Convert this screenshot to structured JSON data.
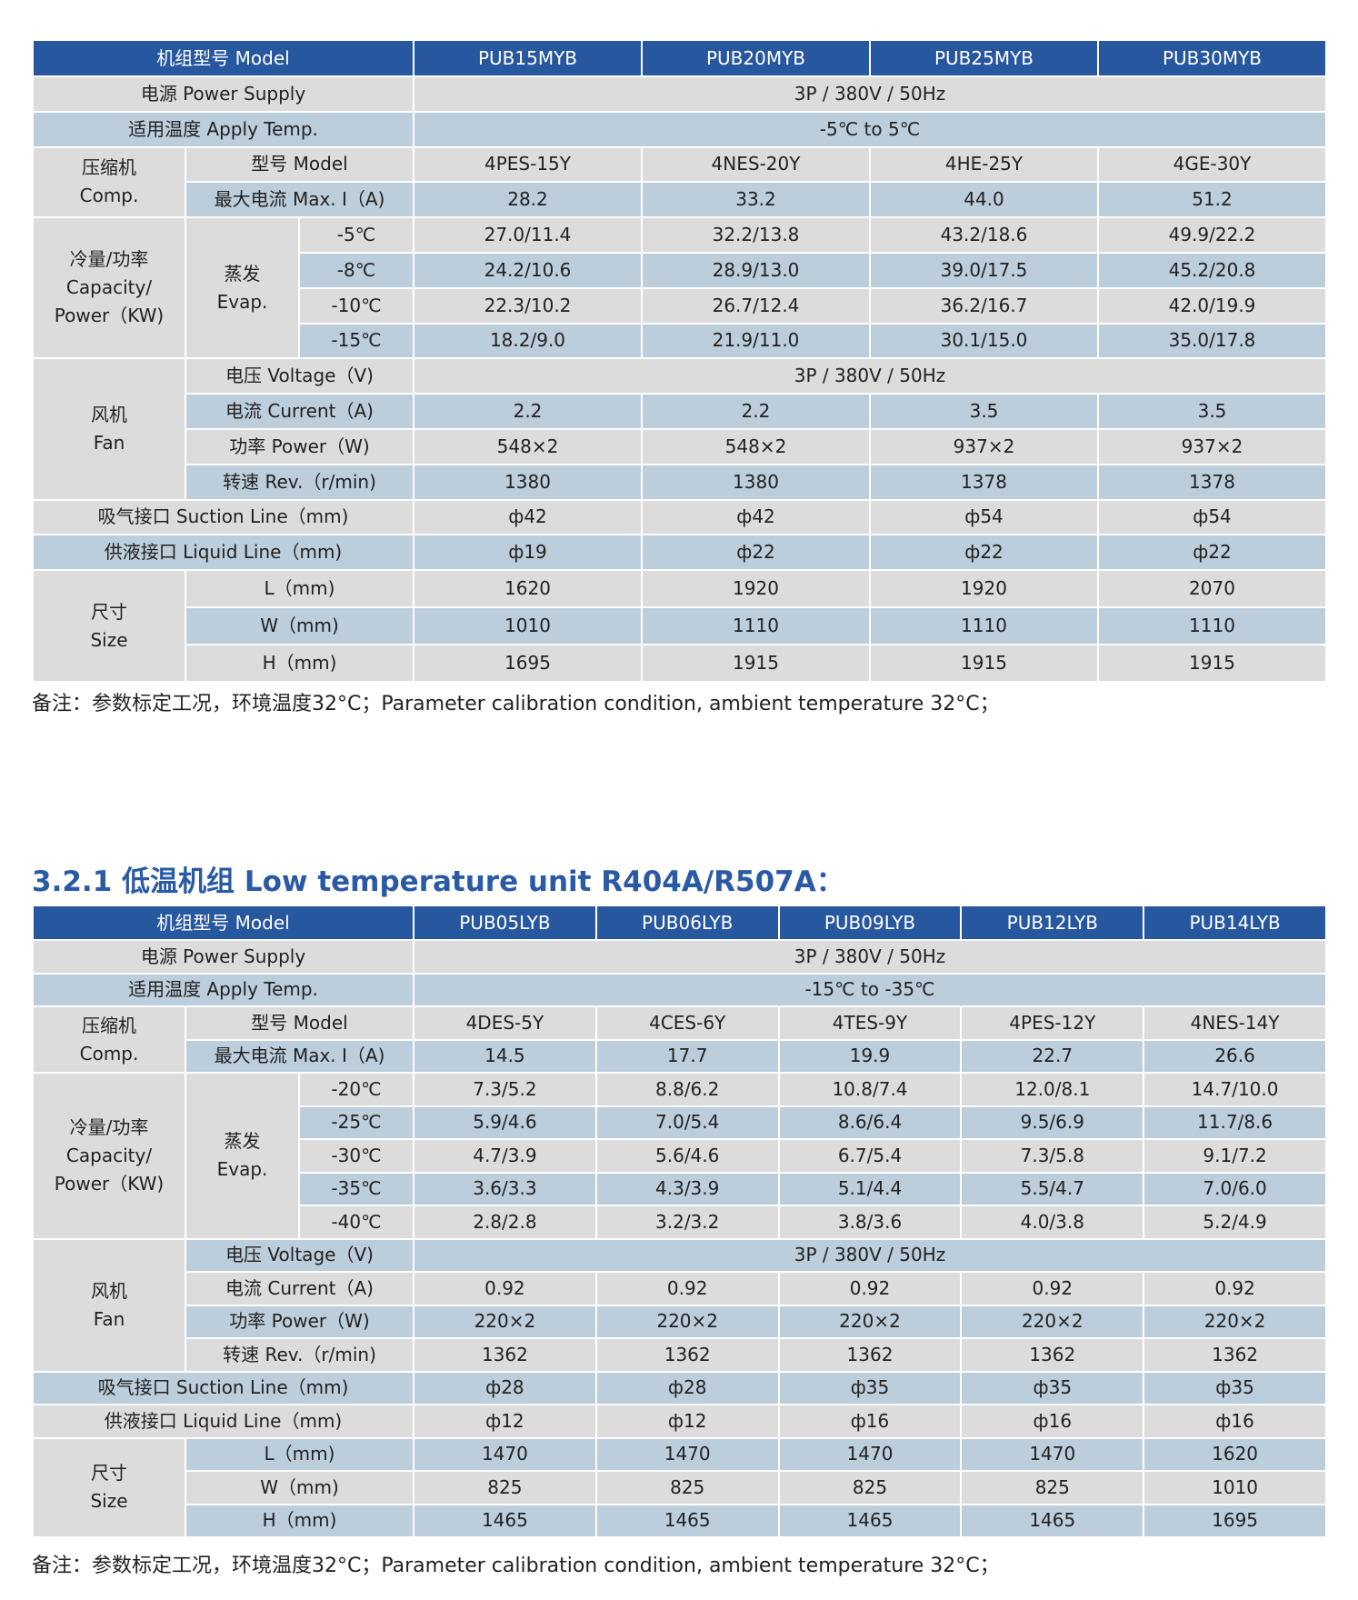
{
  "colors": {
    "header": "#27579f",
    "gray_row": "#dcdcdc",
    "blue_row": "#bccddb",
    "title": "#2a5aa6"
  },
  "tables": [
    {
      "header_label": "机组型号 Model",
      "models": [
        "PUB15MYB",
        "PUB20MYB",
        "PUB25MYB",
        "PUB30MYB"
      ],
      "power_supply": {
        "label": "电源 Power Supply",
        "value": "3P / 380V / 50Hz"
      },
      "apply_temp": {
        "label": "适用温度 Apply Temp.",
        "value": "-5℃ to 5℃"
      },
      "compressor": {
        "label": "压缩机\nComp.",
        "model_label": "型号 Model",
        "model_values": [
          "4PES-15Y",
          "4NES-20Y",
          "4HE-25Y",
          "4GE-30Y"
        ],
        "max_current_label": "最大电流 Max. I（A)",
        "max_current_values": [
          "28.2",
          "33.2",
          "44.0",
          "51.2"
        ]
      },
      "capacity": {
        "label": "冷量/功率\nCapacity/\nPower（KW)",
        "evap_label": "蒸发\nEvap.",
        "rows": [
          {
            "temp": "-5℃",
            "values": [
              "27.0/11.4",
              "32.2/13.8",
              "43.2/18.6",
              "49.9/22.2"
            ]
          },
          {
            "temp": "-8℃",
            "values": [
              "24.2/10.6",
              "28.9/13.0",
              "39.0/17.5",
              "45.2/20.8"
            ]
          },
          {
            "temp": "-10℃",
            "values": [
              "22.3/10.2",
              "26.7/12.4",
              "36.2/16.7",
              "42.0/19.9"
            ]
          },
          {
            "temp": "-15℃",
            "values": [
              "18.2/9.0",
              "21.9/11.0",
              "30.1/15.0",
              "35.0/17.8"
            ]
          }
        ]
      },
      "fan": {
        "label": "风机\nFan",
        "voltage_label": "电压 Voltage（V)",
        "voltage_value": "3P / 380V / 50Hz",
        "current_label": "电流 Current（A)",
        "current_values": [
          "2.2",
          "2.2",
          "3.5",
          "3.5"
        ],
        "power_label": "功率 Power（W)",
        "power_values": [
          "548×2",
          "548×2",
          "937×2",
          "937×2"
        ],
        "rev_label": "转速 Rev.（r/min)",
        "rev_values": [
          "1380",
          "1380",
          "1378",
          "1378"
        ]
      },
      "suction": {
        "label": "吸气接口 Suction Line（mm)",
        "values": [
          "ф42",
          "ф42",
          "ф54",
          "ф54"
        ]
      },
      "liquid": {
        "label": "供液接口 Liquid Line（mm)",
        "values": [
          "ф19",
          "ф22",
          "ф22",
          "ф22"
        ]
      },
      "size": {
        "label": "尺寸\nSize",
        "l_label": "L（mm)",
        "l_values": [
          "1620",
          "1920",
          "1920",
          "2070"
        ],
        "w_label": "W（mm)",
        "w_values": [
          "1010",
          "1110",
          "1110",
          "1110"
        ],
        "h_label": "H（mm)",
        "h_values": [
          "1695",
          "1915",
          "1915",
          "1915"
        ]
      },
      "note": "备注：参数标定工况，环境温度32°C；Parameter calibration condition, ambient temperature 32°C；"
    },
    {
      "title": "3.2.1 低温机组 Low temperature unit  R404A/R507A：",
      "header_label": "机组型号 Model",
      "models": [
        "PUB05LYB",
        "PUB06LYB",
        "PUB09LYB",
        "PUB12LYB",
        "PUB14LYB"
      ],
      "power_supply": {
        "label": "电源 Power Supply",
        "value": "3P / 380V / 50Hz"
      },
      "apply_temp": {
        "label": "适用温度 Apply Temp.",
        "value": "-15℃ to -35℃"
      },
      "compressor": {
        "label": "压缩机\nComp.",
        "model_label": "型号 Model",
        "model_values": [
          "4DES-5Y",
          "4CES-6Y",
          "4TES-9Y",
          "4PES-12Y",
          "4NES-14Y"
        ],
        "max_current_label": "最大电流 Max. I（A)",
        "max_current_values": [
          "14.5",
          "17.7",
          "19.9",
          "22.7",
          "26.6"
        ]
      },
      "capacity": {
        "label": "冷量/功率\nCapacity/\nPower（KW)",
        "evap_label": "蒸发\nEvap.",
        "rows": [
          {
            "temp": "-20℃",
            "values": [
              "7.3/5.2",
              "8.8/6.2",
              "10.8/7.4",
              "12.0/8.1",
              "14.7/10.0"
            ]
          },
          {
            "temp": "-25℃",
            "values": [
              "5.9/4.6",
              "7.0/5.4",
              "8.6/6.4",
              "9.5/6.9",
              "11.7/8.6"
            ]
          },
          {
            "temp": "-30℃",
            "values": [
              "4.7/3.9",
              "5.6/4.6",
              "6.7/5.4",
              "7.3/5.8",
              "9.1/7.2"
            ]
          },
          {
            "temp": "-35℃",
            "values": [
              "3.6/3.3",
              "4.3/3.9",
              "5.1/4.4",
              "5.5/4.7",
              "7.0/6.0"
            ]
          },
          {
            "temp": "-40℃",
            "values": [
              "2.8/2.8",
              "3.2/3.2",
              "3.8/3.6",
              "4.0/3.8",
              "5.2/4.9"
            ]
          }
        ]
      },
      "fan": {
        "label": "风机\nFan",
        "voltage_label": "电压 Voltage（V)",
        "voltage_value": "3P / 380V / 50Hz",
        "current_label": "电流 Current（A)",
        "current_values": [
          "0.92",
          "0.92",
          "0.92",
          "0.92",
          "0.92"
        ],
        "power_label": "功率 Power（W)",
        "power_values": [
          "220×2",
          "220×2",
          "220×2",
          "220×2",
          "220×2"
        ],
        "rev_label": "转速 Rev.（r/min)",
        "rev_values": [
          "1362",
          "1362",
          "1362",
          "1362",
          "1362"
        ]
      },
      "suction": {
        "label": "吸气接口 Suction Line（mm)",
        "values": [
          "ф28",
          "ф28",
          "ф35",
          "ф35",
          "ф35"
        ]
      },
      "liquid": {
        "label": "供液接口 Liquid Line（mm)",
        "values": [
          "ф12",
          "ф12",
          "ф16",
          "ф16",
          "ф16"
        ]
      },
      "size": {
        "label": "尺寸\nSize",
        "l_label": "L（mm)",
        "l_values": [
          "1470",
          "1470",
          "1470",
          "1470",
          "1620"
        ],
        "w_label": "W（mm)",
        "w_values": [
          "825",
          "825",
          "825",
          "825",
          "1010"
        ],
        "h_label": "H（mm)",
        "h_values": [
          "1465",
          "1465",
          "1465",
          "1465",
          "1695"
        ]
      },
      "note": "备注：参数标定工况，环境温度32°C；Parameter calibration condition, ambient temperature 32°C；"
    }
  ]
}
